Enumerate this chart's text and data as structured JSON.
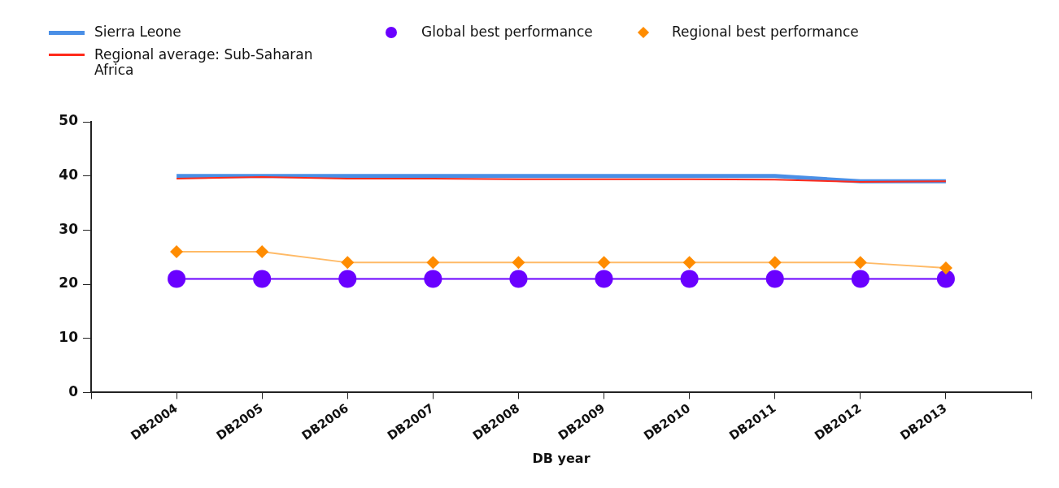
{
  "chart_data": {
    "type": "line",
    "xlabel": "DB year",
    "categories": [
      "DB2004",
      "DB2005",
      "DB2006",
      "DB2007",
      "DB2008",
      "DB2009",
      "DB2010",
      "DB2011",
      "DB2012",
      "DB2013"
    ],
    "series": [
      {
        "name": "Sierra Leone",
        "color": "#4a8fe6",
        "marker": "none",
        "values": [
          40,
          40,
          40,
          40,
          40,
          40,
          40,
          40,
          39,
          39
        ]
      },
      {
        "name": "Regional average: Sub-Saharan Africa",
        "color": "#ff2a1a",
        "marker": "none",
        "values": [
          39.5,
          39.8,
          39.5,
          39.5,
          39.4,
          39.4,
          39.4,
          39.3,
          38.9,
          39
        ]
      },
      {
        "name": "Global best performance",
        "color": "#6a00ff",
        "marker": "circle",
        "values": [
          21,
          21,
          21,
          21,
          21,
          21,
          21,
          21,
          21,
          21
        ]
      },
      {
        "name": "Regional best performance",
        "color": "#ff8c00",
        "marker": "diamond",
        "values": [
          26,
          26,
          24,
          24,
          24,
          24,
          24,
          24,
          24,
          23
        ]
      }
    ],
    "ylim": [
      0,
      50
    ],
    "yticks": [
      0,
      10,
      20,
      30,
      40,
      50
    ],
    "grid": false,
    "legend": "top left"
  }
}
